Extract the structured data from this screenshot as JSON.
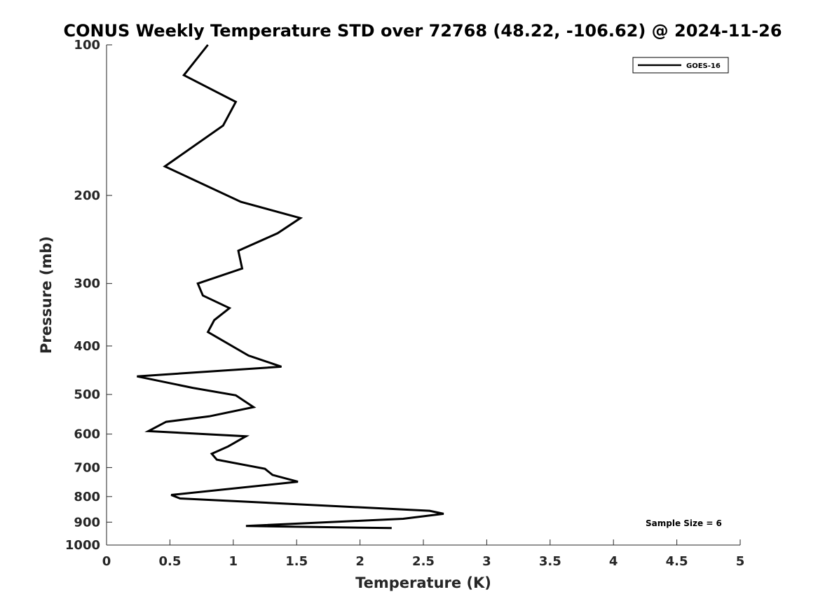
{
  "chart_data": {
    "type": "line",
    "title": "CONUS Weekly Temperature STD over 72768 (48.22, -106.62) @ 2024-11-26",
    "xlabel": "Temperature (K)",
    "ylabel": "Pressure (mb)",
    "xlim": [
      0,
      5
    ],
    "ylim": [
      100,
      1000
    ],
    "y_scale": "log",
    "y_reversed": true,
    "grid": false,
    "legend_position": "top-right",
    "x_ticks": [
      "0",
      "0.5",
      "1",
      "1.5",
      "2",
      "2.5",
      "3",
      "3.5",
      "4",
      "4.5",
      "5"
    ],
    "y_ticks": [
      "100",
      "200",
      "300",
      "400",
      "500",
      "600",
      "700",
      "800",
      "900",
      "1000"
    ],
    "annotation": "Sample Size = 6",
    "series": [
      {
        "name": "GOES-16",
        "color": "#000000",
        "x": [
          0.8,
          0.61,
          1.02,
          0.92,
          0.46,
          1.06,
          1.53,
          1.35,
          1.04,
          1.07,
          0.72,
          0.76,
          0.97,
          0.85,
          0.8,
          1.12,
          1.38,
          0.24,
          0.68,
          1.02,
          1.16,
          0.81,
          0.47,
          0.33,
          1.1,
          0.96,
          0.83,
          0.87,
          1.25,
          1.31,
          1.51,
          0.51,
          0.58,
          2.55,
          2.66,
          2.34,
          1.1,
          2.25
        ],
        "y": [
          100,
          115,
          130,
          145,
          175,
          206,
          222,
          238,
          258,
          280,
          300,
          317,
          336,
          355,
          375,
          418,
          440,
          460,
          485,
          502,
          530,
          553,
          567,
          592,
          606,
          635,
          657,
          675,
          704,
          724,
          747,
          794,
          807,
          854,
          866,
          886,
          916,
          925
        ]
      }
    ]
  }
}
